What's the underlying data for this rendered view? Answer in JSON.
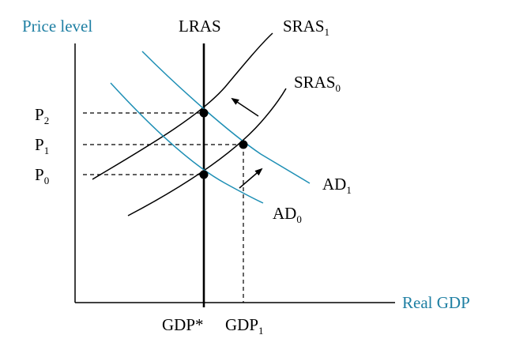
{
  "colors": {
    "axis_title": "#1e7fa3",
    "demand": "#1e8fb5",
    "supply": "#000000",
    "guides": "#000000"
  },
  "axes": {
    "y_title": "Price level",
    "x_title": "Real GDP"
  },
  "curves": {
    "lras": {
      "label": "LRAS"
    },
    "sras1": {
      "label": "SRAS",
      "sub": "1"
    },
    "sras0": {
      "label": "SRAS",
      "sub": "0"
    },
    "ad1": {
      "label": "AD",
      "sub": "1"
    },
    "ad0": {
      "label": "AD",
      "sub": "0"
    }
  },
  "price_labels": [
    {
      "label": "P",
      "sub": "2"
    },
    {
      "label": "P",
      "sub": "1"
    },
    {
      "label": "P",
      "sub": "0"
    }
  ],
  "output_labels": {
    "potential": "GDP*",
    "gdp1": {
      "label": "GDP",
      "sub": "1"
    }
  }
}
